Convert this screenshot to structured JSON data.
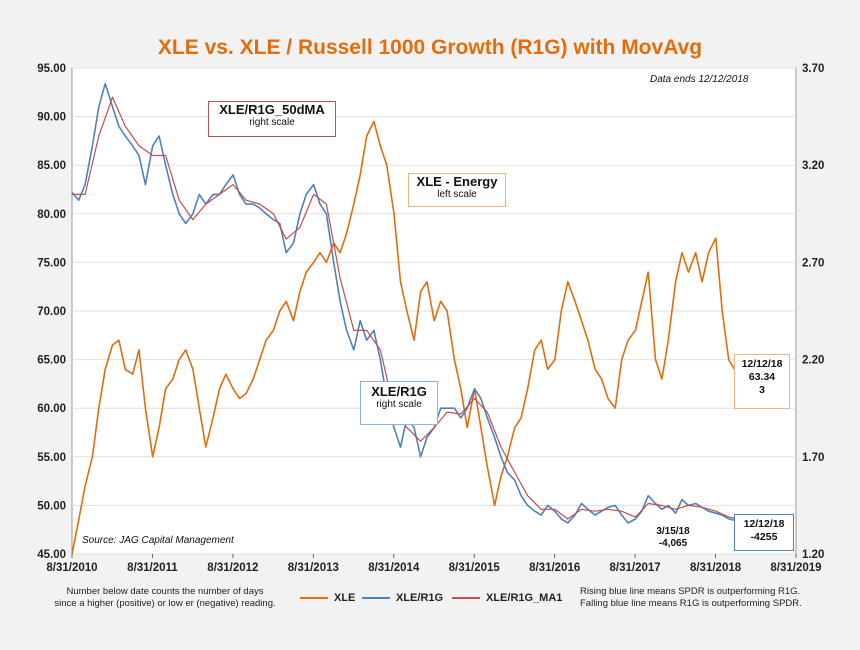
{
  "chart_data": {
    "type": "line",
    "title": "XLE vs. XLE / Russell 1000 Growth (R1G) with MovAvg",
    "left_axis": {
      "min": 45,
      "max": 95,
      "ticks": [
        "45.00",
        "50.00",
        "55.00",
        "60.00",
        "65.00",
        "70.00",
        "75.00",
        "80.00",
        "85.00",
        "90.00",
        "95.00"
      ]
    },
    "right_axis": {
      "min": 1.2,
      "max": 3.7,
      "ticks": [
        "1.20",
        "1.70",
        "2.20",
        "2.70",
        "3.20",
        "3.70"
      ]
    },
    "x_ticks": [
      "8/31/2010",
      "8/31/2011",
      "8/31/2012",
      "8/31/2013",
      "8/31/2014",
      "8/31/2015",
      "8/31/2016",
      "8/31/2017",
      "8/31/2018",
      "8/31/2019"
    ],
    "x_range": [
      2010.667,
      2019.667
    ],
    "grid": "horizontal",
    "series": [
      {
        "name": "XLE",
        "axis": "left",
        "color": "#e46c0a",
        "points": [
          [
            2010.667,
            45.0
          ],
          [
            2010.75,
            48.5
          ],
          [
            2010.83,
            52.0
          ],
          [
            2010.92,
            55.0
          ],
          [
            2011.0,
            60.0
          ],
          [
            2011.08,
            64.0
          ],
          [
            2011.17,
            66.5
          ],
          [
            2011.25,
            67.0
          ],
          [
            2011.33,
            64.0
          ],
          [
            2011.42,
            63.5
          ],
          [
            2011.5,
            66.0
          ],
          [
            2011.58,
            60.0
          ],
          [
            2011.67,
            55.0
          ],
          [
            2011.75,
            58.0
          ],
          [
            2011.83,
            62.0
          ],
          [
            2011.92,
            63.0
          ],
          [
            2012.0,
            65.0
          ],
          [
            2012.08,
            66.0
          ],
          [
            2012.17,
            64.0
          ],
          [
            2012.25,
            60.0
          ],
          [
            2012.33,
            56.0
          ],
          [
            2012.42,
            59.0
          ],
          [
            2012.5,
            62.0
          ],
          [
            2012.58,
            63.5
          ],
          [
            2012.67,
            62.0
          ],
          [
            2012.75,
            61.0
          ],
          [
            2012.83,
            61.5
          ],
          [
            2012.92,
            63.0
          ],
          [
            2013.0,
            65.0
          ],
          [
            2013.08,
            67.0
          ],
          [
            2013.17,
            68.0
          ],
          [
            2013.25,
            70.0
          ],
          [
            2013.33,
            71.0
          ],
          [
            2013.42,
            69.0
          ],
          [
            2013.5,
            72.0
          ],
          [
            2013.58,
            74.0
          ],
          [
            2013.67,
            75.0
          ],
          [
            2013.75,
            76.0
          ],
          [
            2013.83,
            75.0
          ],
          [
            2013.92,
            77.0
          ],
          [
            2014.0,
            76.0
          ],
          [
            2014.08,
            78.0
          ],
          [
            2014.17,
            81.0
          ],
          [
            2014.25,
            84.0
          ],
          [
            2014.33,
            88.0
          ],
          [
            2014.42,
            89.5
          ],
          [
            2014.5,
            87.0
          ],
          [
            2014.58,
            85.0
          ],
          [
            2014.67,
            80.0
          ],
          [
            2014.75,
            73.0
          ],
          [
            2014.83,
            70.0
          ],
          [
            2014.92,
            67.0
          ],
          [
            2015.0,
            72.0
          ],
          [
            2015.08,
            73.0
          ],
          [
            2015.17,
            69.0
          ],
          [
            2015.25,
            71.0
          ],
          [
            2015.33,
            70.0
          ],
          [
            2015.42,
            65.0
          ],
          [
            2015.5,
            62.0
          ],
          [
            2015.58,
            58.0
          ],
          [
            2015.67,
            62.0
          ],
          [
            2015.75,
            58.0
          ],
          [
            2015.83,
            54.0
          ],
          [
            2015.92,
            50.0
          ],
          [
            2016.0,
            53.0
          ],
          [
            2016.08,
            55.0
          ],
          [
            2016.17,
            58.0
          ],
          [
            2016.25,
            59.0
          ],
          [
            2016.33,
            62.0
          ],
          [
            2016.42,
            66.0
          ],
          [
            2016.5,
            67.0
          ],
          [
            2016.58,
            64.0
          ],
          [
            2016.67,
            65.0
          ],
          [
            2016.75,
            70.0
          ],
          [
            2016.83,
            73.0
          ],
          [
            2016.92,
            71.0
          ],
          [
            2017.0,
            69.0
          ],
          [
            2017.08,
            67.0
          ],
          [
            2017.17,
            64.0
          ],
          [
            2017.25,
            63.0
          ],
          [
            2017.33,
            61.0
          ],
          [
            2017.42,
            60.0
          ],
          [
            2017.5,
            65.0
          ],
          [
            2017.58,
            67.0
          ],
          [
            2017.67,
            68.0
          ],
          [
            2017.75,
            71.0
          ],
          [
            2017.83,
            74.0
          ],
          [
            2017.92,
            65.0
          ],
          [
            2018.0,
            63.0
          ],
          [
            2018.08,
            67.0
          ],
          [
            2018.17,
            73.0
          ],
          [
            2018.25,
            76.0
          ],
          [
            2018.33,
            74.0
          ],
          [
            2018.42,
            76.0
          ],
          [
            2018.5,
            73.0
          ],
          [
            2018.58,
            76.0
          ],
          [
            2018.67,
            77.5
          ],
          [
            2018.75,
            70.0
          ],
          [
            2018.83,
            65.0
          ],
          [
            2018.95,
            63.34
          ]
        ]
      },
      {
        "name": "XLE/R1G",
        "axis": "right",
        "color": "#4f81bd",
        "points": [
          [
            2010.667,
            3.06
          ],
          [
            2010.75,
            3.02
          ],
          [
            2010.83,
            3.1
          ],
          [
            2010.92,
            3.3
          ],
          [
            2011.0,
            3.5
          ],
          [
            2011.08,
            3.62
          ],
          [
            2011.17,
            3.5
          ],
          [
            2011.25,
            3.4
          ],
          [
            2011.33,
            3.35
          ],
          [
            2011.42,
            3.3
          ],
          [
            2011.5,
            3.25
          ],
          [
            2011.58,
            3.1
          ],
          [
            2011.67,
            3.3
          ],
          [
            2011.75,
            3.35
          ],
          [
            2011.83,
            3.2
          ],
          [
            2011.92,
            3.05
          ],
          [
            2012.0,
            2.95
          ],
          [
            2012.08,
            2.9
          ],
          [
            2012.17,
            2.95
          ],
          [
            2012.25,
            3.05
          ],
          [
            2012.33,
            3.0
          ],
          [
            2012.42,
            3.05
          ],
          [
            2012.5,
            3.05
          ],
          [
            2012.58,
            3.1
          ],
          [
            2012.67,
            3.15
          ],
          [
            2012.75,
            3.05
          ],
          [
            2012.83,
            3.0
          ],
          [
            2012.92,
            3.0
          ],
          [
            2013.0,
            2.98
          ],
          [
            2013.08,
            2.95
          ],
          [
            2013.17,
            2.92
          ],
          [
            2013.25,
            2.9
          ],
          [
            2013.33,
            2.75
          ],
          [
            2013.42,
            2.8
          ],
          [
            2013.5,
            2.95
          ],
          [
            2013.58,
            3.05
          ],
          [
            2013.67,
            3.1
          ],
          [
            2013.75,
            3.0
          ],
          [
            2013.83,
            2.95
          ],
          [
            2013.92,
            2.7
          ],
          [
            2014.0,
            2.5
          ],
          [
            2014.08,
            2.35
          ],
          [
            2014.17,
            2.25
          ],
          [
            2014.25,
            2.4
          ],
          [
            2014.33,
            2.3
          ],
          [
            2014.42,
            2.35
          ],
          [
            2014.5,
            2.2
          ],
          [
            2014.58,
            2.0
          ],
          [
            2014.67,
            1.85
          ],
          [
            2014.75,
            1.75
          ],
          [
            2014.83,
            1.9
          ],
          [
            2014.92,
            1.85
          ],
          [
            2015.0,
            1.7
          ],
          [
            2015.08,
            1.8
          ],
          [
            2015.17,
            1.85
          ],
          [
            2015.25,
            1.95
          ],
          [
            2015.33,
            1.95
          ],
          [
            2015.42,
            1.95
          ],
          [
            2015.5,
            1.9
          ],
          [
            2015.58,
            1.95
          ],
          [
            2015.67,
            2.05
          ],
          [
            2015.75,
            2.0
          ],
          [
            2015.83,
            1.9
          ],
          [
            2015.92,
            1.8
          ],
          [
            2016.0,
            1.7
          ],
          [
            2016.08,
            1.62
          ],
          [
            2016.17,
            1.58
          ],
          [
            2016.25,
            1.5
          ],
          [
            2016.33,
            1.45
          ],
          [
            2016.42,
            1.42
          ],
          [
            2016.5,
            1.4
          ],
          [
            2016.58,
            1.45
          ],
          [
            2016.67,
            1.42
          ],
          [
            2016.75,
            1.38
          ],
          [
            2016.83,
            1.36
          ],
          [
            2016.92,
            1.4
          ],
          [
            2017.0,
            1.46
          ],
          [
            2017.08,
            1.43
          ],
          [
            2017.17,
            1.4
          ],
          [
            2017.25,
            1.42
          ],
          [
            2017.33,
            1.44
          ],
          [
            2017.42,
            1.45
          ],
          [
            2017.5,
            1.4
          ],
          [
            2017.58,
            1.36
          ],
          [
            2017.67,
            1.38
          ],
          [
            2017.75,
            1.42
          ],
          [
            2017.83,
            1.5
          ],
          [
            2017.92,
            1.46
          ],
          [
            2018.0,
            1.43
          ],
          [
            2018.08,
            1.45
          ],
          [
            2018.17,
            1.41
          ],
          [
            2018.25,
            1.48
          ],
          [
            2018.33,
            1.45
          ],
          [
            2018.42,
            1.46
          ],
          [
            2018.5,
            1.44
          ],
          [
            2018.58,
            1.42
          ],
          [
            2018.67,
            1.41
          ],
          [
            2018.75,
            1.4
          ],
          [
            2018.83,
            1.38
          ],
          [
            2018.95,
            1.37
          ]
        ]
      },
      {
        "name": "XLE/R1G_MA1",
        "axis": "right",
        "color": "#c0504d",
        "points": [
          [
            2010.667,
            3.05
          ],
          [
            2010.83,
            3.05
          ],
          [
            2011.0,
            3.35
          ],
          [
            2011.17,
            3.55
          ],
          [
            2011.33,
            3.4
          ],
          [
            2011.5,
            3.3
          ],
          [
            2011.67,
            3.25
          ],
          [
            2011.83,
            3.25
          ],
          [
            2012.0,
            3.02
          ],
          [
            2012.17,
            2.92
          ],
          [
            2012.33,
            3.0
          ],
          [
            2012.5,
            3.05
          ],
          [
            2012.67,
            3.1
          ],
          [
            2012.83,
            3.02
          ],
          [
            2013.0,
            3.0
          ],
          [
            2013.17,
            2.95
          ],
          [
            2013.33,
            2.82
          ],
          [
            2013.5,
            2.88
          ],
          [
            2013.67,
            3.05
          ],
          [
            2013.83,
            3.0
          ],
          [
            2014.0,
            2.62
          ],
          [
            2014.17,
            2.35
          ],
          [
            2014.33,
            2.35
          ],
          [
            2014.5,
            2.25
          ],
          [
            2014.67,
            1.95
          ],
          [
            2014.83,
            1.85
          ],
          [
            2015.0,
            1.78
          ],
          [
            2015.17,
            1.85
          ],
          [
            2015.33,
            1.93
          ],
          [
            2015.5,
            1.92
          ],
          [
            2015.67,
            2.0
          ],
          [
            2015.83,
            1.93
          ],
          [
            2016.0,
            1.75
          ],
          [
            2016.17,
            1.62
          ],
          [
            2016.33,
            1.5
          ],
          [
            2016.5,
            1.43
          ],
          [
            2016.67,
            1.43
          ],
          [
            2016.83,
            1.38
          ],
          [
            2017.0,
            1.43
          ],
          [
            2017.17,
            1.42
          ],
          [
            2017.33,
            1.43
          ],
          [
            2017.5,
            1.42
          ],
          [
            2017.67,
            1.39
          ],
          [
            2017.83,
            1.46
          ],
          [
            2018.0,
            1.45
          ],
          [
            2018.17,
            1.43
          ],
          [
            2018.33,
            1.45
          ],
          [
            2018.5,
            1.44
          ],
          [
            2018.67,
            1.42
          ],
          [
            2018.83,
            1.39
          ],
          [
            2018.95,
            1.38
          ]
        ]
      }
    ],
    "legend_position": "bottom-center"
  },
  "annotations": {
    "ma_label": {
      "main": "XLE/R1G_50dMA",
      "sub": "right scale"
    },
    "energy_label": {
      "main": "XLE - Energy",
      "sub": "left scale"
    },
    "ratio_label": {
      "main": "XLE/R1G",
      "sub": "right scale"
    },
    "xle_end_box": {
      "line1": "12/12/18",
      "line2": "63.34",
      "line3": "3"
    },
    "ratio_end_box": {
      "line1": "12/12/18",
      "line2": "-4255"
    },
    "low_callout": {
      "line1": "3/15/18",
      "line2": "-4,065"
    },
    "source": "Source: JAG Capital Management",
    "data_ends": "Data ends 12/12/2018"
  },
  "footer": {
    "left_note_1": "Number below date counts the number of days",
    "left_note_2": "since a higher (positive) or low er (negative) reading.",
    "right_note_1": "Rising blue line means SPDR  is outperforming R1G.",
    "right_note_2": "Falling blue line means R1G is outperforming SPDR.",
    "legend": [
      "XLE",
      "XLE/R1G",
      "XLE/R1G_MA1"
    ]
  }
}
